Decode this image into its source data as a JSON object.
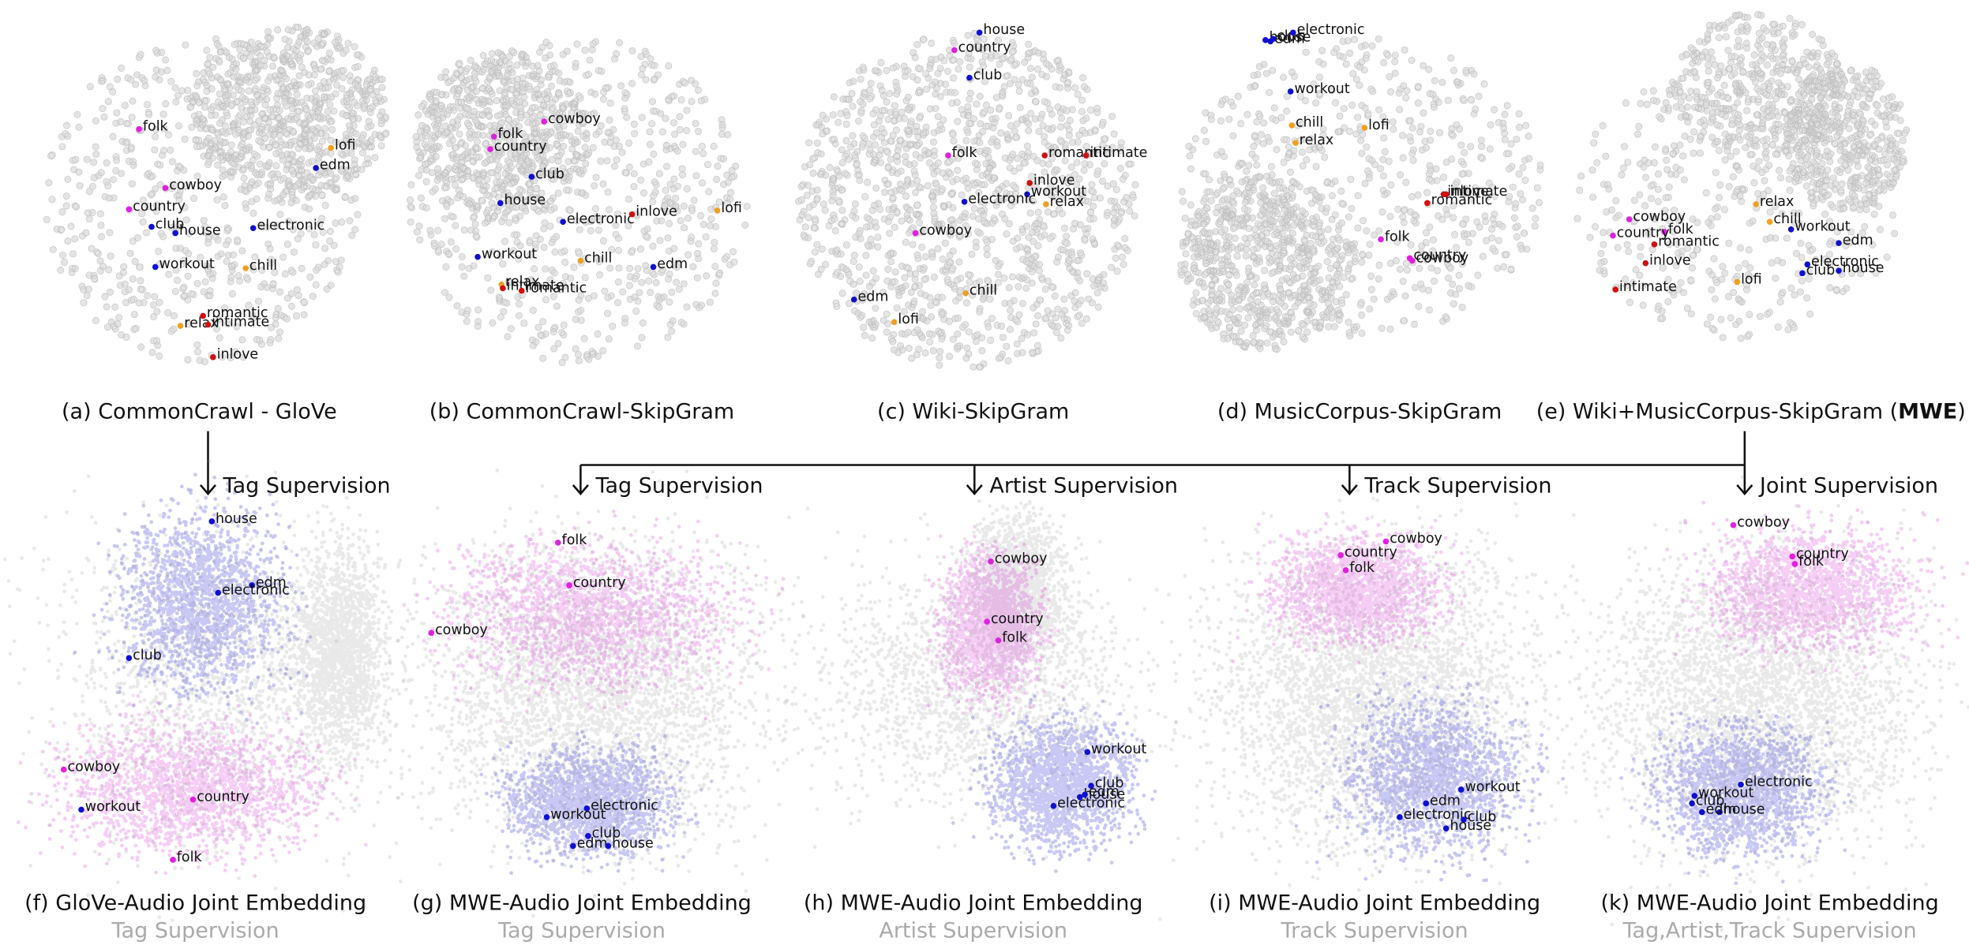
{
  "panels": [
    {
      "caption": "(a) CommonCrawl - GloVe",
      "words": [
        {
          "label": "folk",
          "color": "#e020e0"
        },
        {
          "label": "cowboy",
          "color": "#e020e0"
        },
        {
          "label": "country",
          "color": "#e020e0"
        },
        {
          "label": "club",
          "color": "#1010d0"
        },
        {
          "label": "house",
          "color": "#1010d0"
        },
        {
          "label": "electronic",
          "color": "#1010d0"
        },
        {
          "label": "workout",
          "color": "#1010d0"
        },
        {
          "label": "chill",
          "color": "#f0a020"
        },
        {
          "label": "lofi",
          "color": "#f0a020"
        },
        {
          "label": "edm",
          "color": "#1010d0"
        },
        {
          "label": "romantic",
          "color": "#d01010"
        },
        {
          "label": "relax",
          "color": "#f0a020"
        },
        {
          "label": "intimate",
          "color": "#d01010"
        },
        {
          "label": "inlove",
          "color": "#d01010"
        }
      ]
    },
    {
      "caption": "(b) CommonCrawl-SkipGram",
      "words": [
        {
          "label": "cowboy",
          "color": "#e020e0"
        },
        {
          "label": "folk",
          "color": "#e020e0"
        },
        {
          "label": "country",
          "color": "#e020e0"
        },
        {
          "label": "club",
          "color": "#1010d0"
        },
        {
          "label": "house",
          "color": "#1010d0"
        },
        {
          "label": "electronic",
          "color": "#1010d0"
        },
        {
          "label": "inlove",
          "color": "#d01010"
        },
        {
          "label": "workout",
          "color": "#1010d0"
        },
        {
          "label": "chill",
          "color": "#f0a020"
        },
        {
          "label": "lofi",
          "color": "#f0a020"
        },
        {
          "label": "edm",
          "color": "#1010d0"
        },
        {
          "label": "relax",
          "color": "#f0a020"
        },
        {
          "label": "intimate",
          "color": "#d01010"
        },
        {
          "label": "romantic",
          "color": "#d01010"
        }
      ]
    },
    {
      "caption": "(c) Wiki-SkipGram",
      "words": [
        {
          "label": "house",
          "color": "#1010d0"
        },
        {
          "label": "country",
          "color": "#e020e0"
        },
        {
          "label": "club",
          "color": "#1010d0"
        },
        {
          "label": "folk",
          "color": "#e020e0"
        },
        {
          "label": "romantic",
          "color": "#d01010"
        },
        {
          "label": "intimate",
          "color": "#d01010"
        },
        {
          "label": "inlove",
          "color": "#d01010"
        },
        {
          "label": "workout",
          "color": "#1010d0"
        },
        {
          "label": "electronic",
          "color": "#1010d0"
        },
        {
          "label": "relax",
          "color": "#f0a020"
        },
        {
          "label": "cowboy",
          "color": "#e020e0"
        },
        {
          "label": "chill",
          "color": "#f0a020"
        },
        {
          "label": "edm",
          "color": "#1010d0"
        },
        {
          "label": "lofi",
          "color": "#f0a020"
        }
      ]
    },
    {
      "caption": "(d) MusicCorpus-SkipGram",
      "words": [
        {
          "label": "house",
          "color": "#1010d0"
        },
        {
          "label": "edm",
          "color": "#1010d0"
        },
        {
          "label": "club",
          "color": "#1010d0"
        },
        {
          "label": "electronic",
          "color": "#1010d0"
        },
        {
          "label": "workout",
          "color": "#1010d0"
        },
        {
          "label": "chill",
          "color": "#f0a020"
        },
        {
          "label": "relax",
          "color": "#f0a020"
        },
        {
          "label": "lofi",
          "color": "#f0a020"
        },
        {
          "label": "inlove",
          "color": "#d01010"
        },
        {
          "label": "intimate",
          "color": "#d01010"
        },
        {
          "label": "romantic",
          "color": "#d01010"
        },
        {
          "label": "folk",
          "color": "#e020e0"
        },
        {
          "label": "country",
          "color": "#e020e0"
        },
        {
          "label": "cowboy",
          "color": "#e020e0"
        }
      ]
    },
    {
      "caption": "(e) Wiki+MusicCorpus-SkipGram (",
      "caption_emphasis": "MWE",
      "caption_close": ")",
      "words": [
        {
          "label": "cowboy",
          "color": "#e020e0"
        },
        {
          "label": "folk",
          "color": "#e020e0"
        },
        {
          "label": "country",
          "color": "#e020e0"
        },
        {
          "label": "romantic",
          "color": "#d01010"
        },
        {
          "label": "inlove",
          "color": "#d01010"
        },
        {
          "label": "intimate",
          "color": "#d01010"
        },
        {
          "label": "relax",
          "color": "#f0a020"
        },
        {
          "label": "chill",
          "color": "#f0a020"
        },
        {
          "label": "workout",
          "color": "#1010d0"
        },
        {
          "label": "edm",
          "color": "#1010d0"
        },
        {
          "label": "electronic",
          "color": "#1010d0"
        },
        {
          "label": "club",
          "color": "#1010d0"
        },
        {
          "label": "house",
          "color": "#1010d0"
        },
        {
          "label": "lofi",
          "color": "#f0a020"
        }
      ]
    }
  ],
  "bottom_panels": [
    {
      "caption": "(f) GloVe-Audio Joint Embedding",
      "subtitle": "Tag Supervision",
      "arrow_label": "Tag Supervision",
      "words": [
        {
          "label": "house",
          "color": "#1010d0"
        },
        {
          "label": "edm",
          "color": "#1010d0"
        },
        {
          "label": "electronic",
          "color": "#1010d0"
        },
        {
          "label": "club",
          "color": "#1010d0"
        },
        {
          "label": "cowboy",
          "color": "#e020e0"
        },
        {
          "label": "workout",
          "color": "#1010d0"
        },
        {
          "label": "country",
          "color": "#e020e0"
        },
        {
          "label": "folk",
          "color": "#e020e0"
        }
      ]
    },
    {
      "caption": "(g) MWE-Audio Joint Embedding",
      "subtitle": "Tag Supervision",
      "arrow_label": "Tag Supervision",
      "words": [
        {
          "label": "folk",
          "color": "#e020e0"
        },
        {
          "label": "country",
          "color": "#e020e0"
        },
        {
          "label": "cowboy",
          "color": "#e020e0"
        },
        {
          "label": "electronic",
          "color": "#1010d0"
        },
        {
          "label": "workout",
          "color": "#1010d0"
        },
        {
          "label": "club",
          "color": "#1010d0"
        },
        {
          "label": "edm",
          "color": "#1010d0"
        },
        {
          "label": "house",
          "color": "#1010d0"
        }
      ]
    },
    {
      "caption": "(h) MWE-Audio Joint Embedding",
      "subtitle": "Artist Supervision",
      "arrow_label": "Artist Supervision",
      "words": [
        {
          "label": "cowboy",
          "color": "#e020e0"
        },
        {
          "label": "country",
          "color": "#e020e0"
        },
        {
          "label": "folk",
          "color": "#e020e0"
        },
        {
          "label": "workout",
          "color": "#1010d0"
        },
        {
          "label": "club",
          "color": "#1010d0"
        },
        {
          "label": "house",
          "color": "#1010d0"
        },
        {
          "label": "edm",
          "color": "#1010d0"
        },
        {
          "label": "electronic",
          "color": "#1010d0"
        }
      ]
    },
    {
      "caption": "(i) MWE-Audio Joint Embedding",
      "subtitle": "Track Supervision",
      "arrow_label": "Track Supervision",
      "words": [
        {
          "label": "cowboy",
          "color": "#e020e0"
        },
        {
          "label": "country",
          "color": "#e020e0"
        },
        {
          "label": "folk",
          "color": "#e020e0"
        },
        {
          "label": "workout",
          "color": "#1010d0"
        },
        {
          "label": "edm",
          "color": "#1010d0"
        },
        {
          "label": "electronic",
          "color": "#1010d0"
        },
        {
          "label": "club",
          "color": "#1010d0"
        },
        {
          "label": "house",
          "color": "#1010d0"
        }
      ]
    },
    {
      "caption": "(k) MWE-Audio Joint Embedding",
      "subtitle": "Tag,Artist,Track Supervision",
      "arrow_label": "Joint Supervision",
      "words": [
        {
          "label": "cowboy",
          "color": "#e020e0"
        },
        {
          "label": "country",
          "color": "#e020e0"
        },
        {
          "label": "folk",
          "color": "#e020e0"
        },
        {
          "label": "electronic",
          "color": "#1010d0"
        },
        {
          "label": "workout",
          "color": "#1010d0"
        },
        {
          "label": "club",
          "color": "#1010d0"
        },
        {
          "label": "house",
          "color": "#1010d0"
        },
        {
          "label": "edm",
          "color": "#1010d0"
        }
      ]
    }
  ]
}
